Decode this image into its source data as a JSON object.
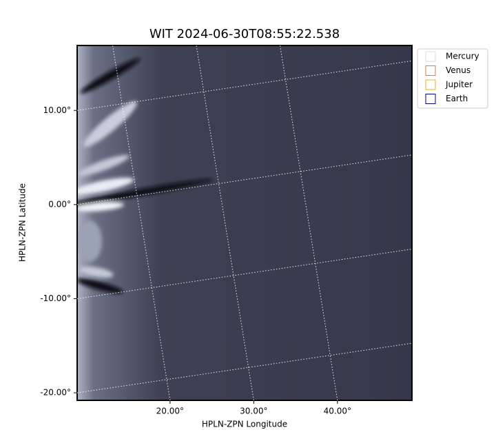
{
  "chart_data": {
    "type": "image",
    "title": "WIT 2024-06-30T08:55:22.538",
    "xlabel": "HPLN-ZPN Longitude",
    "ylabel": "HPLN-ZPN Latitude",
    "xlim": [
      8.9,
      48.9
    ],
    "ylim": [
      -20.8,
      16.9
    ],
    "xticks": [
      {
        "value": 20,
        "label": "20.00°"
      },
      {
        "value": 30,
        "label": "30.00°"
      },
      {
        "value": 40,
        "label": "40.00°"
      }
    ],
    "yticks": [
      {
        "value": -20,
        "label": "-20.00°"
      },
      {
        "value": -10,
        "label": "-10.00°"
      },
      {
        "value": 0,
        "label": "0.00°"
      },
      {
        "value": 10,
        "label": "10.00°"
      }
    ],
    "grid": true,
    "legend": "upper right",
    "legend_entries": [
      {
        "name": "Mercury",
        "color": "#dddddd"
      },
      {
        "name": "Venus",
        "color": "#e07b39"
      },
      {
        "name": "Jupiter",
        "color": "#e8b020"
      },
      {
        "name": "Earth",
        "color": "#000080"
      }
    ]
  }
}
